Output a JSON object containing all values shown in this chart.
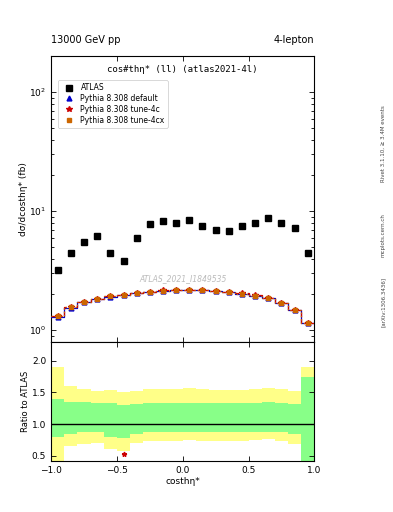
{
  "title_top": "13000 GeV pp",
  "title_right": "4-lepton",
  "plot_title": "cos#thη* (ll) (atlas2021-4l)",
  "watermark": "ATLAS_2021_I1849535",
  "xlabel": "costhη*",
  "ylabel_main": "dσ/dcosthη* (fb)",
  "ylabel_ratio": "Ratio to ATLAS",
  "right_label_top": "Rivet 3.1.10, ≥ 3.4M events",
  "right_label_bottom": "[arXiv:1306.3436]",
  "right_label_site": "mcplots.cern.ch",
  "ylim_main": [
    0.8,
    200
  ],
  "ylim_ratio": [
    0.42,
    2.3
  ],
  "ratio_yticks": [
    0.5,
    1.0,
    1.5,
    2.0
  ],
  "atlas_x": [
    -0.95,
    -0.85,
    -0.75,
    -0.65,
    -0.55,
    -0.45,
    -0.35,
    -0.25,
    -0.15,
    -0.05,
    0.05,
    0.15,
    0.25,
    0.35,
    0.45,
    0.55,
    0.65,
    0.75,
    0.85,
    0.95
  ],
  "atlas_y": [
    3.2,
    4.5,
    5.5,
    6.2,
    4.5,
    3.8,
    6.0,
    7.8,
    8.2,
    8.0,
    8.5,
    7.5,
    7.0,
    6.8,
    7.5,
    8.0,
    8.8,
    8.0,
    7.2,
    4.5
  ],
  "pythia_default_y": [
    1.3,
    1.55,
    1.72,
    1.82,
    1.92,
    1.97,
    2.05,
    2.1,
    2.15,
    2.17,
    2.18,
    2.16,
    2.12,
    2.08,
    2.03,
    1.95,
    1.85,
    1.7,
    1.48,
    1.15
  ],
  "pythia_4c_y": [
    1.32,
    1.57,
    1.74,
    1.84,
    1.94,
    1.99,
    2.06,
    2.11,
    2.16,
    2.18,
    2.2,
    2.17,
    2.13,
    2.09,
    2.04,
    1.96,
    1.86,
    1.71,
    1.49,
    1.16
  ],
  "pythia_4cx_y": [
    1.31,
    1.56,
    1.73,
    1.83,
    1.93,
    1.98,
    2.05,
    2.1,
    2.15,
    2.17,
    2.19,
    2.16,
    2.12,
    2.08,
    2.03,
    1.95,
    1.85,
    1.7,
    1.48,
    1.15
  ],
  "bin_edges": [
    -1.0,
    -0.9,
    -0.8,
    -0.7,
    -0.6,
    -0.5,
    -0.4,
    -0.3,
    -0.2,
    -0.1,
    0.0,
    0.1,
    0.2,
    0.3,
    0.4,
    0.5,
    0.6,
    0.7,
    0.8,
    0.9,
    1.0
  ],
  "ratio_green_lo": [
    0.8,
    0.85,
    0.87,
    0.87,
    0.8,
    0.78,
    0.84,
    0.87,
    0.87,
    0.87,
    0.87,
    0.87,
    0.87,
    0.87,
    0.87,
    0.87,
    0.87,
    0.87,
    0.85,
    0.42
  ],
  "ratio_green_hi": [
    1.4,
    1.35,
    1.35,
    1.33,
    1.33,
    1.3,
    1.32,
    1.34,
    1.34,
    1.34,
    1.34,
    1.34,
    1.34,
    1.34,
    1.34,
    1.34,
    1.35,
    1.34,
    1.32,
    1.75
  ],
  "ratio_yellow_lo": [
    0.42,
    0.65,
    0.68,
    0.7,
    0.6,
    0.58,
    0.7,
    0.73,
    0.74,
    0.74,
    0.75,
    0.74,
    0.73,
    0.73,
    0.74,
    0.75,
    0.76,
    0.74,
    0.68,
    0.42
  ],
  "ratio_yellow_hi": [
    1.9,
    1.6,
    1.56,
    1.52,
    1.54,
    1.5,
    1.53,
    1.56,
    1.56,
    1.56,
    1.57,
    1.56,
    1.54,
    1.54,
    1.54,
    1.56,
    1.57,
    1.56,
    1.52,
    1.9
  ],
  "color_atlas": "#000000",
  "color_default": "#0000cc",
  "color_4c": "#cc0000",
  "color_4cx": "#cc6600",
  "legend_entries": [
    "ATLAS",
    "Pythia 8.308 default",
    "Pythia 8.308 tune-4c",
    "Pythia 8.308 tune-4cx"
  ]
}
